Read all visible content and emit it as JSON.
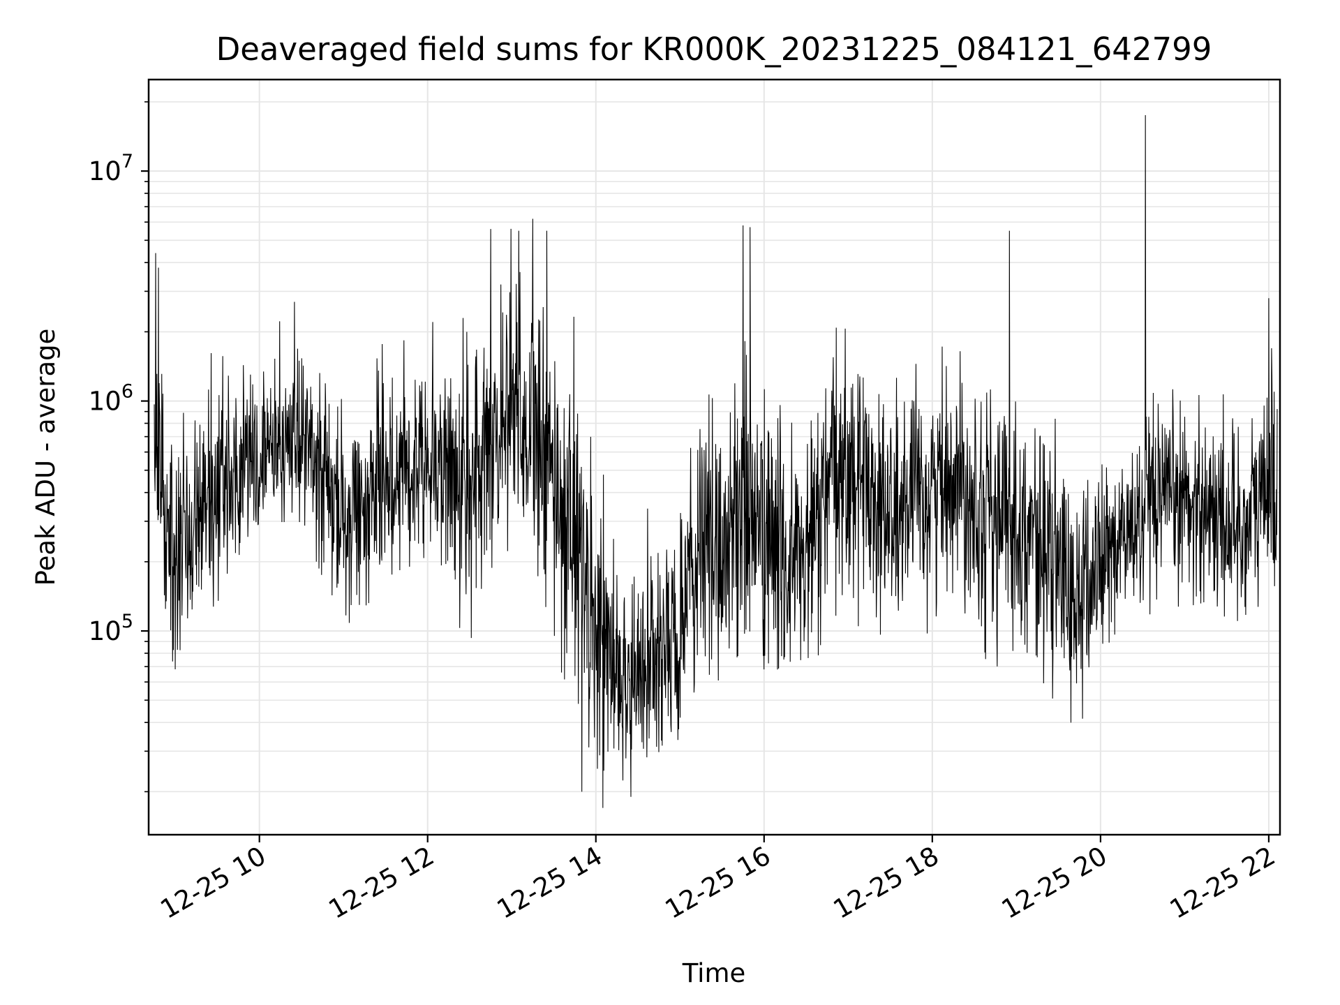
{
  "chart_data": {
    "type": "line",
    "title": "Deaveraged field sums for KR000K_20231225_084121_642799",
    "xlabel": "Time",
    "ylabel": "Peak ADU - average",
    "yscale": "log",
    "ylim": [
      13000,
      25000000
    ],
    "xlim": [
      "2023-12-25 08:41",
      "2023-12-25 22:08"
    ],
    "grid": true,
    "x_ticks": [
      {
        "label": "12-25 10",
        "time": "2023-12-25 10:00"
      },
      {
        "label": "12-25 12",
        "time": "2023-12-25 12:00"
      },
      {
        "label": "12-25 14",
        "time": "2023-12-25 14:00"
      },
      {
        "label": "12-25 16",
        "time": "2023-12-25 16:00"
      },
      {
        "label": "12-25 18",
        "time": "2023-12-25 18:00"
      },
      {
        "label": "12-25 20",
        "time": "2023-12-25 20:00"
      },
      {
        "label": "12-25 22",
        "time": "2023-12-25 22:00"
      }
    ],
    "y_ticks": [
      {
        "base": "10",
        "exp": "5",
        "value": 100000
      },
      {
        "base": "10",
        "exp": "6",
        "value": 1000000
      },
      {
        "base": "10",
        "exp": "7",
        "value": 10000000
      }
    ],
    "series": [
      {
        "color": "#000000",
        "x": [
          "2023-12-25 08:45",
          "2023-12-25 09:00",
          "2023-12-25 09:15",
          "2023-12-25 09:30",
          "2023-12-25 09:45",
          "2023-12-25 10:00",
          "2023-12-25 10:15",
          "2023-12-25 10:30",
          "2023-12-25 10:45",
          "2023-12-25 11:00",
          "2023-12-25 11:15",
          "2023-12-25 11:30",
          "2023-12-25 11:45",
          "2023-12-25 12:00",
          "2023-12-25 12:15",
          "2023-12-25 12:30",
          "2023-12-25 12:45",
          "2023-12-25 13:00",
          "2023-12-25 13:15",
          "2023-12-25 13:30",
          "2023-12-25 13:45",
          "2023-12-25 14:00",
          "2023-12-25 14:15",
          "2023-12-25 14:30",
          "2023-12-25 14:45",
          "2023-12-25 15:00",
          "2023-12-25 15:15",
          "2023-12-25 15:30",
          "2023-12-25 15:45",
          "2023-12-25 16:00",
          "2023-12-25 16:15",
          "2023-12-25 16:30",
          "2023-12-25 16:45",
          "2023-12-25 17:00",
          "2023-12-25 17:15",
          "2023-12-25 17:30",
          "2023-12-25 17:45",
          "2023-12-25 18:00",
          "2023-12-25 18:15",
          "2023-12-25 18:30",
          "2023-12-25 18:45",
          "2023-12-25 19:00",
          "2023-12-25 19:15",
          "2023-12-25 19:30",
          "2023-12-25 19:45",
          "2023-12-25 20:00",
          "2023-12-25 20:15",
          "2023-12-25 20:30",
          "2023-12-25 20:45",
          "2023-12-25 21:00",
          "2023-12-25 21:15",
          "2023-12-25 21:30",
          "2023-12-25 21:45",
          "2023-12-25 22:00",
          "2023-12-25 22:06"
        ],
        "median": [
          450000,
          250000,
          350000,
          420000,
          500000,
          550000,
          650000,
          700000,
          450000,
          300000,
          350000,
          450000,
          550000,
          600000,
          500000,
          400000,
          600000,
          1200000,
          700000,
          400000,
          300000,
          100000,
          70000,
          60000,
          80000,
          90000,
          250000,
          220000,
          400000,
          250000,
          200000,
          200000,
          400000,
          500000,
          450000,
          300000,
          350000,
          400000,
          500000,
          400000,
          300000,
          300000,
          250000,
          180000,
          130000,
          200000,
          250000,
          300000,
          350000,
          380000,
          350000,
          300000,
          280000,
          450000,
          400000
        ],
        "low": [
          150000,
          80000,
          150000,
          150000,
          250000,
          300000,
          350000,
          350000,
          200000,
          120000,
          150000,
          180000,
          220000,
          250000,
          150000,
          100000,
          150000,
          300000,
          200000,
          100000,
          50000,
          30000,
          25000,
          30000,
          35000,
          40000,
          80000,
          70000,
          100000,
          80000,
          80000,
          70000,
          100000,
          150000,
          100000,
          80000,
          100000,
          120000,
          150000,
          100000,
          80000,
          100000,
          80000,
          50000,
          45000,
          80000,
          100000,
          120000,
          150000,
          150000,
          140000,
          120000,
          80000,
          150000,
          200000
        ],
        "high": [
          2500000,
          1200000,
          1200000,
          1500000,
          1500000,
          1800000,
          2000000,
          2200000,
          1500000,
          900000,
          1200000,
          1800000,
          2000000,
          2500000,
          2500000,
          1800000,
          3000000,
          5500000,
          4500000,
          2500000,
          2000000,
          600000,
          400000,
          300000,
          500000,
          400000,
          1500000,
          1200000,
          4000000,
          2000000,
          1000000,
          1000000,
          2000000,
          1800000,
          1500000,
          1200000,
          1200000,
          1500000,
          1500000,
          1300000,
          1200000,
          1100000,
          900000,
          700000,
          500000,
          700000,
          800000,
          900000,
          1000000,
          1200000,
          1100000,
          900000,
          800000,
          2000000,
          1500000
        ],
        "spikes": [
          {
            "x": "2023-12-25 08:46",
            "y": 4400000
          },
          {
            "x": "2023-12-25 08:48",
            "y": 3800000
          },
          {
            "x": "2023-12-25 10:25",
            "y": 2700000
          },
          {
            "x": "2023-12-25 12:45",
            "y": 5600000
          },
          {
            "x": "2023-12-25 13:05",
            "y": 5500000
          },
          {
            "x": "2023-12-25 13:15",
            "y": 6200000
          },
          {
            "x": "2023-12-25 13:25",
            "y": 5500000
          },
          {
            "x": "2023-12-25 15:45",
            "y": 5800000
          },
          {
            "x": "2023-12-25 15:50",
            "y": 5700000
          },
          {
            "x": "2023-12-25 18:55",
            "y": 5500000
          },
          {
            "x": "2023-12-25 20:32",
            "y": 17500000
          },
          {
            "x": "2023-12-25 22:00",
            "y": 2800000
          },
          {
            "x": "2023-12-25 14:05",
            "y": 17000
          },
          {
            "x": "2023-12-25 14:25",
            "y": 19000
          },
          {
            "x": "2023-12-25 13:50",
            "y": 20000
          }
        ]
      }
    ]
  }
}
